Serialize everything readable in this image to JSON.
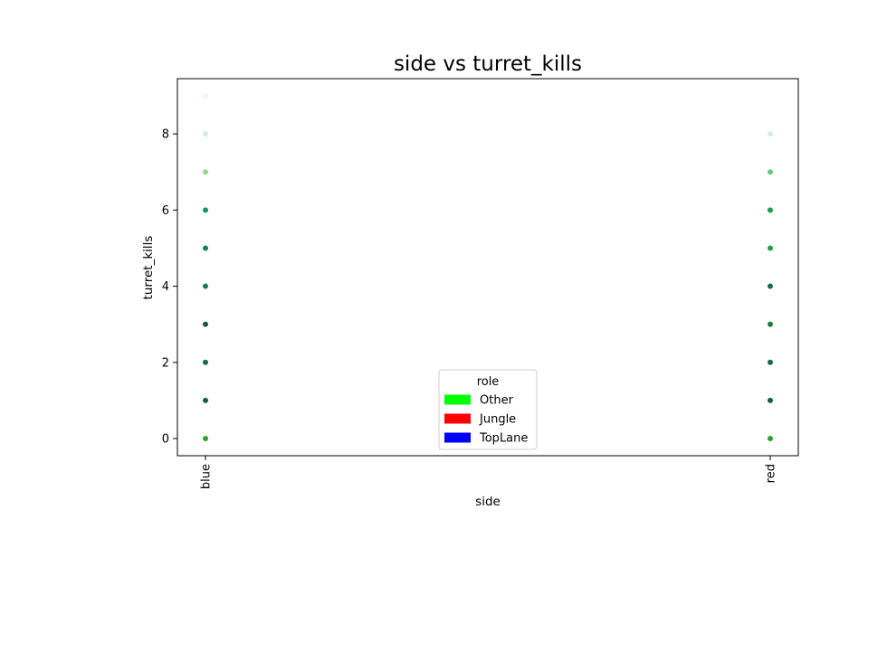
{
  "chart_data": {
    "type": "scatter",
    "title": "side vs turret_kills",
    "xlabel": "side",
    "ylabel": "turret_kills",
    "categories": [
      "blue",
      "red"
    ],
    "ylim": [
      -0.45,
      9.45
    ],
    "yticks": [
      0,
      2,
      4,
      6,
      8
    ],
    "grid": false,
    "legend": {
      "title": "role",
      "placement": "lower center",
      "entries": [
        {
          "label": "Other",
          "color": "#00ff00"
        },
        {
          "label": "Jungle",
          "color": "#ff0000"
        },
        {
          "label": "TopLane",
          "color": "#0000ff"
        }
      ]
    },
    "points": [
      {
        "x": "blue",
        "y": 0,
        "color": "#2ca02c"
      },
      {
        "x": "blue",
        "y": 1,
        "color": "#1a5e38"
      },
      {
        "x": "blue",
        "y": 2,
        "color": "#156b3c"
      },
      {
        "x": "blue",
        "y": 3,
        "color": "#185a40"
      },
      {
        "x": "blue",
        "y": 4,
        "color": "#167a4e"
      },
      {
        "x": "blue",
        "y": 5,
        "color": "#0f8050"
      },
      {
        "x": "blue",
        "y": 6,
        "color": "#0a9a55"
      },
      {
        "x": "blue",
        "y": 7,
        "color": "#8edc84"
      },
      {
        "x": "blue",
        "y": 8,
        "color": "#cdeedd"
      },
      {
        "x": "blue",
        "y": 9,
        "color": "#e6fbe8"
      },
      {
        "x": "red",
        "y": 0,
        "color": "#2ca02c"
      },
      {
        "x": "red",
        "y": 1,
        "color": "#1a5e38"
      },
      {
        "x": "red",
        "y": 2,
        "color": "#156b3c"
      },
      {
        "x": "red",
        "y": 3,
        "color": "#17803c"
      },
      {
        "x": "red",
        "y": 4,
        "color": "#1a6a40"
      },
      {
        "x": "red",
        "y": 5,
        "color": "#18a040"
      },
      {
        "x": "red",
        "y": 6,
        "color": "#12a050"
      },
      {
        "x": "red",
        "y": 7,
        "color": "#5fd070"
      },
      {
        "x": "red",
        "y": 8,
        "color": "#d3efe0"
      }
    ]
  }
}
